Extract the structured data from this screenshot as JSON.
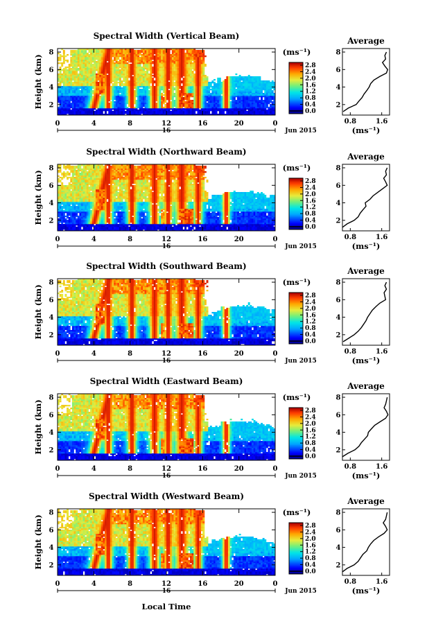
{
  "figure": {
    "xlabel": "Local Time",
    "date_label": "Jun 2015",
    "day_label": "16",
    "x_ticks": [
      "0",
      "4",
      "8",
      "12",
      "16",
      "20",
      "0"
    ],
    "y_ticks": [
      "2",
      "4",
      "6",
      "8"
    ],
    "ylabel": "Height (km)",
    "colorbar": {
      "unit": "(ms⁻¹)",
      "ticks": [
        "0.0",
        "0.4",
        "0.8",
        "1.2",
        "1.6",
        "2.0",
        "2.4",
        "2.8"
      ]
    },
    "avg": {
      "title": "Average",
      "ticks_y": [
        "2",
        "4",
        "6",
        "8"
      ],
      "ticks_x": [
        "0.8",
        "1.6"
      ],
      "xlabel": "(ms⁻¹)"
    }
  },
  "chart_data": [
    {
      "type": "heatmap",
      "title": "Spectral Width (Vertical Beam)",
      "xlabel": "Local Time",
      "ylabel": "Height (km)",
      "xlim": [
        0,
        24
      ],
      "ylim": [
        0.8,
        8.4
      ],
      "colorbar": {
        "label": "(ms-1)",
        "range": [
          0,
          3.0
        ]
      },
      "average_profile": {
        "xlim": [
          0.6,
          1.8
        ],
        "ylim": [
          0.8,
          8.4
        ],
        "heights": [
          1.2,
          1.6,
          2.0,
          2.4,
          2.8,
          3.2,
          3.6,
          4.0,
          4.4,
          4.8,
          5.2,
          5.6,
          6.0,
          6.4,
          6.8,
          7.2,
          7.6,
          8.0
        ],
        "values": [
          0.62,
          0.75,
          0.95,
          1.02,
          1.1,
          1.15,
          1.22,
          1.28,
          1.32,
          1.4,
          1.55,
          1.72,
          1.75,
          1.68,
          1.62,
          1.7,
          1.68,
          1.72
        ]
      }
    },
    {
      "type": "heatmap",
      "title": "Spectral Width (Northward Beam)",
      "xlabel": "Local Time",
      "ylabel": "Height (km)",
      "xlim": [
        0,
        24
      ],
      "ylim": [
        0.8,
        8.4
      ],
      "colorbar": {
        "label": "(ms-1)",
        "range": [
          0,
          3.0
        ]
      },
      "average_profile": {
        "xlim": [
          0.6,
          1.8
        ],
        "ylim": [
          0.8,
          8.4
        ],
        "heights": [
          1.2,
          1.6,
          2.0,
          2.4,
          2.8,
          3.2,
          3.6,
          4.0,
          4.4,
          4.8,
          5.2,
          5.6,
          6.0,
          6.4,
          6.8,
          7.2,
          7.6,
          8.0
        ],
        "values": [
          0.6,
          0.72,
          0.9,
          1.0,
          1.05,
          1.12,
          1.2,
          1.18,
          1.3,
          1.38,
          1.5,
          1.62,
          1.74,
          1.7,
          1.65,
          1.72,
          1.7,
          1.74
        ]
      }
    },
    {
      "type": "heatmap",
      "title": "Spectral Width (Southward Beam)",
      "xlabel": "Local Time",
      "ylabel": "Height (km)",
      "xlim": [
        0,
        24
      ],
      "ylim": [
        0.8,
        8.4
      ],
      "colorbar": {
        "label": "(ms-1)",
        "range": [
          0,
          3.0
        ]
      },
      "average_profile": {
        "xlim": [
          0.6,
          1.8
        ],
        "ylim": [
          0.8,
          8.4
        ],
        "heights": [
          1.2,
          1.6,
          2.0,
          2.4,
          2.8,
          3.2,
          3.6,
          4.0,
          4.4,
          4.8,
          5.2,
          5.6,
          6.0,
          6.4,
          6.8,
          7.2,
          7.6,
          8.0
        ],
        "values": [
          0.62,
          0.76,
          0.9,
          1.0,
          1.08,
          1.14,
          1.2,
          1.24,
          1.3,
          1.36,
          1.45,
          1.55,
          1.7,
          1.68,
          1.66,
          1.72,
          1.68,
          1.72
        ]
      }
    },
    {
      "type": "heatmap",
      "title": "Spectral Width (Eastward Beam)",
      "xlabel": "Local Time",
      "ylabel": "Height (km)",
      "xlim": [
        0,
        24
      ],
      "ylim": [
        0.8,
        8.4
      ],
      "colorbar": {
        "label": "(ms-1)",
        "range": [
          0,
          3.0
        ]
      },
      "average_profile": {
        "xlim": [
          0.6,
          1.8
        ],
        "ylim": [
          0.8,
          8.4
        ],
        "heights": [
          1.2,
          1.6,
          2.0,
          2.4,
          2.8,
          3.2,
          3.6,
          4.0,
          4.4,
          4.8,
          5.2,
          5.6,
          6.0,
          6.4,
          6.8,
          7.2,
          7.6,
          8.0
        ],
        "values": [
          0.6,
          0.74,
          0.92,
          1.02,
          1.08,
          1.16,
          1.24,
          1.26,
          1.34,
          1.42,
          1.56,
          1.7,
          1.76,
          1.72,
          1.66,
          1.7,
          1.72,
          1.74
        ]
      }
    },
    {
      "type": "heatmap",
      "title": "Spectral Width (Westward Beam)",
      "xlabel": "Local Time",
      "ylabel": "Height (km)",
      "xlim": [
        0,
        24
      ],
      "ylim": [
        0.8,
        8.4
      ],
      "colorbar": {
        "label": "(ms-1)",
        "range": [
          0,
          3.0
        ]
      },
      "average_profile": {
        "xlim": [
          0.6,
          1.8
        ],
        "ylim": [
          0.8,
          8.4
        ],
        "heights": [
          1.2,
          1.6,
          2.0,
          2.4,
          2.8,
          3.2,
          3.6,
          4.0,
          4.4,
          4.8,
          5.2,
          5.6,
          6.0,
          6.4,
          6.8,
          7.2,
          7.6,
          8.0
        ],
        "values": [
          0.6,
          0.72,
          0.9,
          1.0,
          1.06,
          1.12,
          1.22,
          1.26,
          1.32,
          1.4,
          1.52,
          1.66,
          1.74,
          1.7,
          1.64,
          1.7,
          1.72,
          1.74
        ]
      }
    }
  ]
}
